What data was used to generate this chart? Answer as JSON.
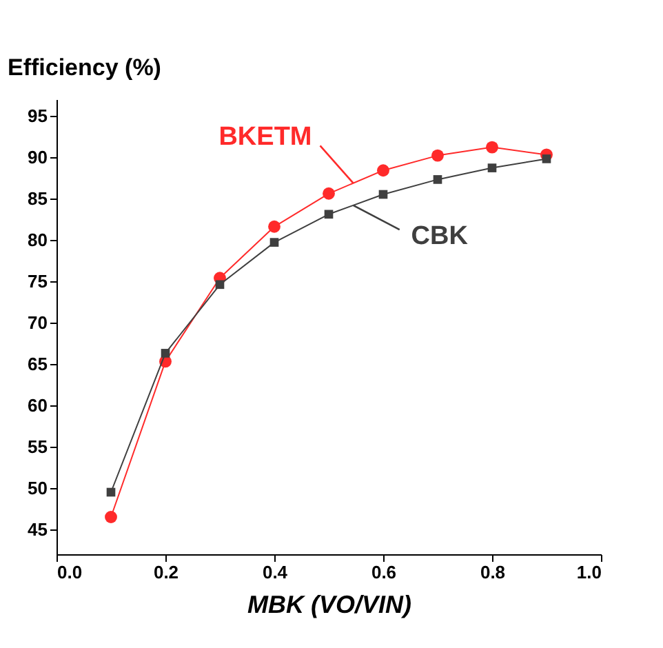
{
  "chart_data": {
    "type": "line",
    "xlabel": "MBK (VO/VIN)",
    "ylabel": "Efficiency (%)",
    "x": [
      0.1,
      0.2,
      0.3,
      0.4,
      0.5,
      0.6,
      0.7,
      0.8,
      0.9
    ],
    "series": [
      {
        "name": "BKETM",
        "color": "#ff2a2a",
        "marker": "circle",
        "values": [
          46.5,
          65.3,
          75.4,
          81.6,
          85.6,
          88.4,
          90.2,
          91.2,
          90.3
        ]
      },
      {
        "name": "CBK",
        "color": "#3f3f3f",
        "marker": "square",
        "values": [
          49.5,
          66.3,
          74.6,
          79.7,
          83.1,
          85.5,
          87.3,
          88.7,
          89.8
        ]
      }
    ],
    "xlim": [
      0,
      1
    ],
    "ylim": [
      42,
      97
    ],
    "xticks": [
      {
        "value": 0,
        "label": "0.0"
      },
      0.2,
      0.4,
      0.6,
      0.8,
      {
        "value": 1,
        "label": "1.0"
      }
    ],
    "yticks": [
      45,
      50,
      55,
      60,
      65,
      70,
      75,
      80,
      85,
      90,
      95
    ],
    "grid": false,
    "legend": false,
    "line_style": "solid"
  }
}
